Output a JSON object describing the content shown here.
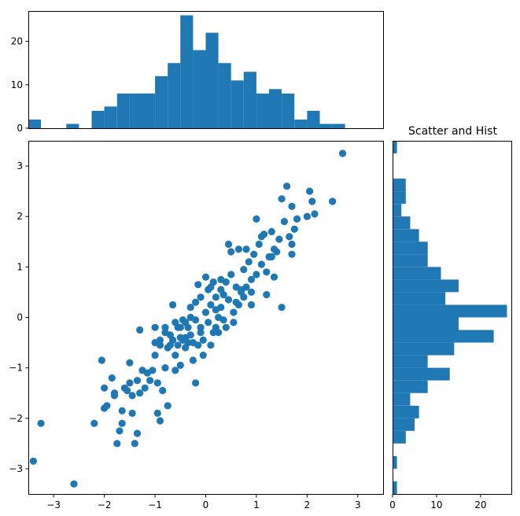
{
  "chart_data": [
    {
      "id": "scatter",
      "type": "scatter",
      "title": "",
      "xlabel": "",
      "ylabel": "",
      "xlim": [
        -3.5,
        3.5
      ],
      "ylim": [
        -3.5,
        3.5
      ],
      "xticks": [
        -3,
        -2,
        -1,
        0,
        1,
        2,
        3
      ],
      "yticks": [
        -3,
        -2,
        -1,
        0,
        1,
        2,
        3
      ],
      "grid": false,
      "color": "#1f77b4",
      "points": [
        [
          -3.4,
          -2.85
        ],
        [
          -3.25,
          -2.1
        ],
        [
          -2.6,
          -3.3
        ],
        [
          -2.2,
          -2.1
        ],
        [
          -2.05,
          -0.85
        ],
        [
          -2.0,
          -1.4
        ],
        [
          -2.0,
          -1.8
        ],
        [
          -1.95,
          -1.75
        ],
        [
          -1.85,
          -1.2
        ],
        [
          -1.8,
          -1.5
        ],
        [
          -1.8,
          -1.55
        ],
        [
          -1.75,
          -2.5
        ],
        [
          -1.7,
          -2.25
        ],
        [
          -1.65,
          -2.1
        ],
        [
          -1.65,
          -1.85
        ],
        [
          -1.6,
          -1.4
        ],
        [
          -1.55,
          -1.45
        ],
        [
          -1.5,
          -0.9
        ],
        [
          -1.5,
          -1.3
        ],
        [
          -1.45,
          -1.55
        ],
        [
          -1.45,
          -1.9
        ],
        [
          -1.4,
          -2.5
        ],
        [
          -1.35,
          -2.3
        ],
        [
          -1.35,
          -1.25
        ],
        [
          -1.3,
          -1.5
        ],
        [
          -1.25,
          -1.05
        ],
        [
          -1.2,
          -1.4
        ],
        [
          -1.15,
          -1.1
        ],
        [
          -1.1,
          -1.25
        ],
        [
          -1.05,
          -1.05
        ],
        [
          -1.0,
          -0.75
        ],
        [
          -1.0,
          -0.2
        ],
        [
          -0.95,
          -1.3
        ],
        [
          -0.95,
          -1.9
        ],
        [
          -0.9,
          -2.05
        ],
        [
          -0.9,
          -0.45
        ],
        [
          -0.85,
          -1.45
        ],
        [
          -0.8,
          -1.0
        ],
        [
          -0.8,
          -0.3
        ],
        [
          -0.75,
          -0.6
        ],
        [
          -0.75,
          -1.75
        ],
        [
          -0.7,
          -0.55
        ],
        [
          -0.7,
          -0.35
        ],
        [
          -0.65,
          0.25
        ],
        [
          -0.65,
          -0.45
        ],
        [
          -0.6,
          -0.75
        ],
        [
          -0.6,
          -1.05
        ],
        [
          -0.55,
          -0.2
        ],
        [
          -0.55,
          -0.55
        ],
        [
          -0.5,
          -0.95
        ],
        [
          -0.5,
          -0.4
        ],
        [
          -0.45,
          -0.45
        ],
        [
          -0.45,
          -0.05
        ],
        [
          -0.4,
          -0.1
        ],
        [
          -0.4,
          -0.6
        ],
        [
          -0.35,
          -0.2
        ],
        [
          -0.35,
          -0.5
        ],
        [
          -0.3,
          0.2
        ],
        [
          -0.3,
          -0.35
        ],
        [
          -0.25,
          -0.85
        ],
        [
          -0.25,
          -0.5
        ],
        [
          -0.2,
          0.3
        ],
        [
          -0.2,
          -0.05
        ],
        [
          -0.2,
          -1.3
        ],
        [
          -0.15,
          0.65
        ],
        [
          -0.15,
          -0.55
        ],
        [
          -0.1,
          -0.3
        ],
        [
          -0.1,
          0.4
        ],
        [
          -0.05,
          -0.75
        ],
        [
          -0.05,
          -0.45
        ],
        [
          0.0,
          0.8
        ],
        [
          0.0,
          0.1
        ],
        [
          0.05,
          -0.1
        ],
        [
          0.05,
          0.55
        ],
        [
          0.1,
          -0.55
        ],
        [
          0.1,
          0.25
        ],
        [
          0.15,
          -0.3
        ],
        [
          0.15,
          0.7
        ],
        [
          0.2,
          -0.2
        ],
        [
          0.2,
          0.4
        ],
        [
          0.25,
          0.0
        ],
        [
          0.25,
          -0.3
        ],
        [
          0.3,
          0.75
        ],
        [
          0.3,
          0.2
        ],
        [
          0.35,
          -0.05
        ],
        [
          0.35,
          0.45
        ],
        [
          0.4,
          0.7
        ],
        [
          0.45,
          0.35
        ],
        [
          0.45,
          1.45
        ],
        [
          0.5,
          0.85
        ],
        [
          0.55,
          0.1
        ],
        [
          0.6,
          0.6
        ],
        [
          0.65,
          1.35
        ],
        [
          0.65,
          0.25
        ],
        [
          0.7,
          0.55
        ],
        [
          0.75,
          0.95
        ],
        [
          0.75,
          0.4
        ],
        [
          0.8,
          1.35
        ],
        [
          0.8,
          0.6
        ],
        [
          0.85,
          1.1
        ],
        [
          0.9,
          0.75
        ],
        [
          0.9,
          0.25
        ],
        [
          0.95,
          1.25
        ],
        [
          1.0,
          1.95
        ],
        [
          1.0,
          0.85
        ],
        [
          1.05,
          1.45
        ],
        [
          1.1,
          1.05
        ],
        [
          1.15,
          1.65
        ],
        [
          1.2,
          0.45
        ],
        [
          1.25,
          1.2
        ],
        [
          1.3,
          1.7
        ],
        [
          1.35,
          0.8
        ],
        [
          1.4,
          1.3
        ],
        [
          1.45,
          1.55
        ],
        [
          1.5,
          2.35
        ],
        [
          1.55,
          1.9
        ],
        [
          1.6,
          2.6
        ],
        [
          1.65,
          1.6
        ],
        [
          1.7,
          1.25
        ],
        [
          1.7,
          2.2
        ],
        [
          1.75,
          1.75
        ],
        [
          1.8,
          1.95
        ],
        [
          2.0,
          2.0
        ],
        [
          2.05,
          2.5
        ],
        [
          2.1,
          2.3
        ],
        [
          2.15,
          2.05
        ],
        [
          2.5,
          2.3
        ],
        [
          2.7,
          3.25
        ],
        [
          -1.0,
          -0.5
        ],
        [
          -0.6,
          -0.1
        ],
        [
          -0.3,
          0.0
        ],
        [
          0.4,
          -0.2
        ],
        [
          0.6,
          0.3
        ],
        [
          0.9,
          0.5
        ],
        [
          1.1,
          1.6
        ],
        [
          1.3,
          1.2
        ],
        [
          1.5,
          0.2
        ],
        [
          -0.5,
          -0.2
        ],
        [
          0.2,
          0.15
        ],
        [
          -0.8,
          -0.2
        ],
        [
          0.7,
          0.5
        ],
        [
          0.5,
          1.3
        ],
        [
          -1.3,
          -0.25
        ],
        [
          1.2,
          0.9
        ],
        [
          1.7,
          1.45
        ],
        [
          0.3,
          0.55
        ],
        [
          -0.9,
          -0.55
        ],
        [
          -0.4,
          -0.4
        ],
        [
          0.1,
          0.6
        ],
        [
          0.55,
          -0.1
        ],
        [
          -0.1,
          -0.2
        ],
        [
          1.35,
          1.35
        ]
      ]
    },
    {
      "id": "hist-x",
      "type": "bar",
      "title": "",
      "xlim": [
        -3.5,
        3.5
      ],
      "ylim": [
        0,
        27
      ],
      "yticks": [
        0,
        10,
        20
      ],
      "grid": false,
      "color": "#1f77b4",
      "bin_edges": [
        -3.5,
        -3.25,
        -3.0,
        -2.75,
        -2.5,
        -2.25,
        -2.0,
        -1.75,
        -1.5,
        -1.25,
        -1.0,
        -0.75,
        -0.5,
        -0.25,
        0.0,
        0.25,
        0.5,
        0.75,
        1.0,
        1.25,
        1.5,
        1.75,
        2.0,
        2.25,
        2.5,
        2.75,
        3.0,
        3.25,
        3.5
      ],
      "counts": [
        2,
        0,
        0,
        1,
        0,
        4,
        5,
        8,
        8,
        8,
        12,
        15,
        26,
        18,
        22,
        15,
        11,
        13,
        8,
        9,
        8,
        2,
        4,
        1,
        1,
        0,
        0,
        0
      ]
    },
    {
      "id": "hist-y",
      "type": "bar",
      "orientation": "horizontal",
      "title": "Scatter and Hist",
      "ylim": [
        -3.5,
        3.5
      ],
      "xlim": [
        0,
        27
      ],
      "xticks": [
        0,
        10,
        20
      ],
      "grid": false,
      "color": "#1f77b4",
      "bin_edges": [
        -3.5,
        -3.25,
        -3.0,
        -2.75,
        -2.5,
        -2.25,
        -2.0,
        -1.75,
        -1.5,
        -1.25,
        -1.0,
        -0.75,
        -0.5,
        -0.25,
        0.0,
        0.25,
        0.5,
        0.75,
        1.0,
        1.25,
        1.5,
        1.75,
        2.0,
        2.25,
        2.5,
        2.75,
        3.0,
        3.25,
        3.5
      ],
      "counts": [
        1,
        0,
        1,
        0,
        3,
        5,
        6,
        4,
        8,
        13,
        8,
        14,
        23,
        15,
        26,
        12,
        15,
        11,
        8,
        8,
        6,
        4,
        2,
        3,
        3,
        0,
        0,
        1
      ]
    }
  ]
}
